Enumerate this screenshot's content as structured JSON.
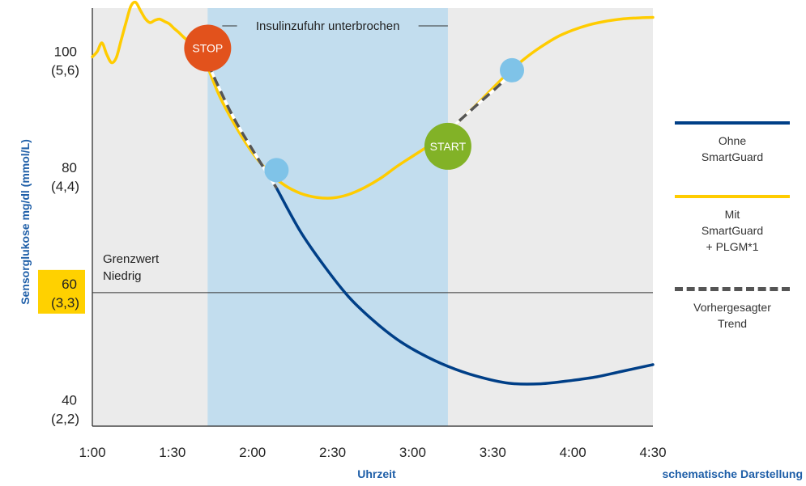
{
  "chart_data": {
    "type": "line",
    "ylabel": "Sensorglukose mg/dl (mmol/L)",
    "xlabel": "Uhrzeit",
    "footnote": "schematische Darstellung",
    "x_ticks": [
      "1:00",
      "1:30",
      "2:00",
      "2:30",
      "3:00",
      "3:30",
      "4:00",
      "4:30"
    ],
    "x_tick_values": [
      1.0,
      1.5,
      2.0,
      2.5,
      3.0,
      3.5,
      4.0,
      4.5
    ],
    "xlim": [
      1.0,
      4.5
    ],
    "ylim": [
      37,
      109
    ],
    "y_ticks": [
      {
        "value": 100,
        "label": "100",
        "sublabel": "(5,6)"
      },
      {
        "value": 80,
        "label": "80",
        "sublabel": "(4,4)"
      },
      {
        "value": 60,
        "label": "60",
        "sublabel": "(3,3)",
        "highlight": "#FFD100"
      },
      {
        "value": 40,
        "label": "40",
        "sublabel": "(2,2)"
      }
    ],
    "threshold": {
      "value": 60,
      "label": "Grenzwert\nNiedrig"
    },
    "suspend_band": {
      "start": 1.72,
      "end": 3.22,
      "label": "Insulinzufuhr unterbrochen",
      "color": "#C2DDEE"
    },
    "series": [
      {
        "name": "Mit SmartGuard + PLGM*1",
        "color": "#FFCC00",
        "x": [
          1.0,
          1.03,
          1.06,
          1.09,
          1.12,
          1.15,
          1.18,
          1.21,
          1.24,
          1.27,
          1.3,
          1.33,
          1.36,
          1.39,
          1.42,
          1.45,
          1.48,
          1.51,
          1.54,
          1.57,
          1.6,
          1.63,
          1.66,
          1.72,
          1.8,
          1.9,
          2.0,
          2.1,
          2.2,
          2.3,
          2.4,
          2.5,
          2.6,
          2.7,
          2.8,
          2.9,
          3.0,
          3.1,
          3.22,
          3.3,
          3.4,
          3.5,
          3.6,
          3.7,
          3.8,
          3.9,
          4.0,
          4.1,
          4.2,
          4.3,
          4.4,
          4.5
        ],
        "values": [
          100.6,
          101.5,
          103,
          101,
          99.6,
          100.5,
          103.5,
          106.5,
          109.3,
          110,
          108.6,
          107.2,
          106.5,
          106.9,
          107.1,
          106.7,
          106.3,
          105.5,
          104.8,
          104,
          103.3,
          102.6,
          102.5,
          98.8,
          93.5,
          88.4,
          84.1,
          80.8,
          78.5,
          77.1,
          76.4,
          76.3,
          76.9,
          78.1,
          79.7,
          81.7,
          83.5,
          85.3,
          87.8,
          89.8,
          92.4,
          95.2,
          97.9,
          100.3,
          102.3,
          104,
          105.2,
          106.1,
          106.7,
          107.1,
          107.3,
          107.4
        ]
      },
      {
        "name": "Ohne SmartGuard",
        "color": "#003F87",
        "x": [
          2.15,
          2.3,
          2.45,
          2.6,
          2.75,
          2.9,
          3.05,
          3.22,
          3.4,
          3.6,
          3.8,
          4.0,
          4.15,
          4.3,
          4.5
        ],
        "values": [
          78,
          70.5,
          64.5,
          59.3,
          55.3,
          52,
          49.5,
          47.3,
          45.6,
          44.4,
          44.3,
          44.9,
          45.5,
          46.4,
          47.6
        ]
      }
    ],
    "predicted_trend": [
      {
        "name": "Vorhergesagter Trend",
        "x": [
          1.72,
          1.86,
          1.98,
          2.15
        ],
        "values": [
          99.5,
          91.3,
          85.5,
          78
        ]
      },
      {
        "name": "Vorhergesagter Trend",
        "x": [
          3.22,
          3.38,
          3.52,
          3.62
        ],
        "values": [
          87.8,
          91.8,
          95.2,
          97.8
        ]
      }
    ],
    "markers": [
      {
        "label": "STOP",
        "x": 1.72,
        "y": 102.1,
        "color": "#E2521C"
      },
      {
        "label": "START",
        "x": 3.22,
        "y": 85.2,
        "color": "#82B227"
      },
      {
        "label": "",
        "x": 2.15,
        "y": 81.1,
        "color": "#7FC3E8"
      },
      {
        "label": "",
        "x": 3.62,
        "y": 98.3,
        "color": "#7FC3E8"
      }
    ],
    "legend": {
      "placement": "right",
      "entries": [
        {
          "text": "Ohne\nSmartGuard",
          "color": "#003F87",
          "style": "solid"
        },
        {
          "text": "Mit\nSmartGuard\n+ PLGM*1",
          "color": "#FFCC00",
          "style": "solid"
        },
        {
          "text": "Vorhergesagter\nTrend",
          "color": "#555555",
          "style": "dashed"
        }
      ]
    }
  }
}
